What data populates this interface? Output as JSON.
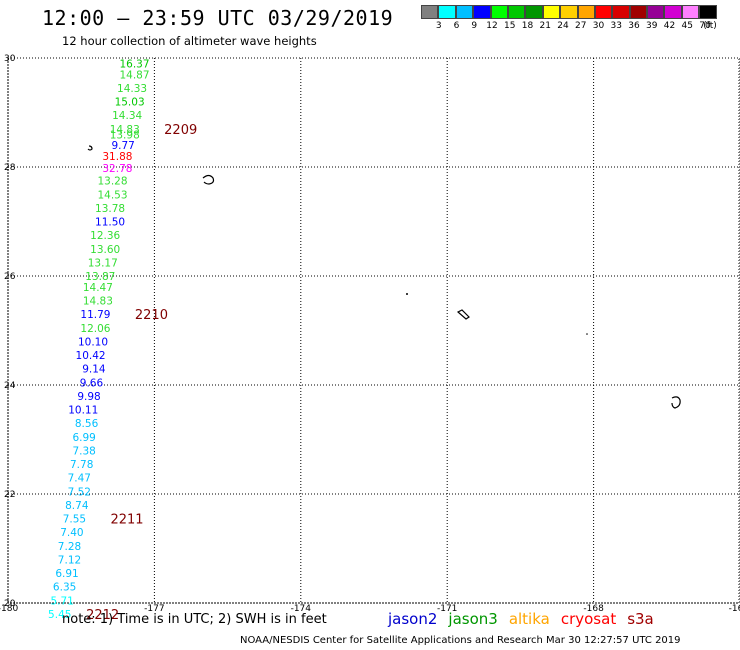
{
  "header": {
    "title": "12:00 – 23:59 UTC 03/29/2019",
    "subtitle": "12 hour collection of altimeter wave heights"
  },
  "legend": {
    "colors": [
      "#808080",
      "#00ffff",
      "#00bfff",
      "#0000ff",
      "#00ff00",
      "#00c800",
      "#009600",
      "#ffff00",
      "#ffd000",
      "#ffa500",
      "#ff0000",
      "#d70000",
      "#a00000",
      "#960096",
      "#d200d2",
      "#ff80ff",
      "#000000"
    ],
    "labels": [
      "3",
      "6",
      "9",
      "12",
      "15",
      "18",
      "21",
      "24",
      "27",
      "30",
      "33",
      "36",
      "39",
      "42",
      "45",
      "70",
      "(ft)"
    ]
  },
  "map": {
    "lon_labels": [
      "-180",
      "-177",
      "-174",
      "-171",
      "-168",
      "-16"
    ],
    "lat_labels": [
      "30",
      "28",
      "26",
      "24",
      "22",
      "20"
    ],
    "lon_range": [
      -180,
      -165
    ],
    "lat_range": [
      20,
      30
    ],
    "track": [
      {
        "v": "16.37",
        "c": "#00c800",
        "lon": -177.1,
        "lat": 29.9
      },
      {
        "v": "14.87",
        "c": "#33dd33",
        "lon": -177.1,
        "lat": 29.7
      },
      {
        "v": "14.33",
        "c": "#33dd33",
        "lon": -177.15,
        "lat": 29.45
      },
      {
        "v": "15.03",
        "c": "#00c800",
        "lon": -177.2,
        "lat": 29.2
      },
      {
        "v": "14.34",
        "c": "#33dd33",
        "lon": -177.25,
        "lat": 28.95
      },
      {
        "v": "14.83",
        "c": "#33dd33",
        "lon": -177.3,
        "lat": 28.7
      },
      {
        "v": "13.98",
        "c": "#33dd33",
        "lon": -177.3,
        "lat": 28.6
      },
      {
        "v": "9.77",
        "c": "#0000ff",
        "lon": -177.4,
        "lat": 28.4
      },
      {
        "v": "31.88",
        "c": "#ff0000",
        "lon": -177.45,
        "lat": 28.2
      },
      {
        "v": "32.78",
        "c": "#ff00ff",
        "lon": -177.45,
        "lat": 27.98
      },
      {
        "v": "13.28",
        "c": "#33dd33",
        "lon": -177.55,
        "lat": 27.75
      },
      {
        "v": "14.53",
        "c": "#33dd33",
        "lon": -177.55,
        "lat": 27.5
      },
      {
        "v": "13.78",
        "c": "#33dd33",
        "lon": -177.6,
        "lat": 27.25
      },
      {
        "v": "11.50",
        "c": "#0000ff",
        "lon": -177.6,
        "lat": 27.0
      },
      {
        "v": "12.36",
        "c": "#33dd33",
        "lon": -177.7,
        "lat": 26.75
      },
      {
        "v": "13.60",
        "c": "#33dd33",
        "lon": -177.7,
        "lat": 26.5
      },
      {
        "v": "13.17",
        "c": "#33dd33",
        "lon": -177.75,
        "lat": 26.25
      },
      {
        "v": "13.87",
        "c": "#33dd33",
        "lon": -177.8,
        "lat": 26.0
      },
      {
        "v": "14.47",
        "c": "#33dd33",
        "lon": -177.85,
        "lat": 25.8
      },
      {
        "v": "14.83",
        "c": "#33dd33",
        "lon": -177.85,
        "lat": 25.55
      },
      {
        "v": "11.79",
        "c": "#0000ff",
        "lon": -177.9,
        "lat": 25.3
      },
      {
        "v": "12.06",
        "c": "#33dd33",
        "lon": -177.9,
        "lat": 25.05
      },
      {
        "v": "10.10",
        "c": "#0000ff",
        "lon": -177.95,
        "lat": 24.8
      },
      {
        "v": "10.42",
        "c": "#0000ff",
        "lon": -178.0,
        "lat": 24.55
      },
      {
        "v": "9.14",
        "c": "#0000ff",
        "lon": -178.0,
        "lat": 24.3
      },
      {
        "v": "9.66",
        "c": "#0000ff",
        "lon": -178.05,
        "lat": 24.05
      },
      {
        "v": "9.98",
        "c": "#0000ff",
        "lon": -178.1,
        "lat": 23.8
      },
      {
        "v": "10.11",
        "c": "#0000ff",
        "lon": -178.15,
        "lat": 23.55
      },
      {
        "v": "8.56",
        "c": "#00bfff",
        "lon": -178.15,
        "lat": 23.3
      },
      {
        "v": "6.99",
        "c": "#00bfff",
        "lon": -178.2,
        "lat": 23.05
      },
      {
        "v": "7.38",
        "c": "#00bfff",
        "lon": -178.2,
        "lat": 22.8
      },
      {
        "v": "7.78",
        "c": "#00bfff",
        "lon": -178.25,
        "lat": 22.55
      },
      {
        "v": "7.47",
        "c": "#00bfff",
        "lon": -178.3,
        "lat": 22.3
      },
      {
        "v": "7.52",
        "c": "#00bfff",
        "lon": -178.3,
        "lat": 22.05
      },
      {
        "v": "8.74",
        "c": "#00bfff",
        "lon": -178.35,
        "lat": 21.8
      },
      {
        "v": "7.55",
        "c": "#00bfff",
        "lon": -178.4,
        "lat": 21.55
      },
      {
        "v": "7.40",
        "c": "#00bfff",
        "lon": -178.45,
        "lat": 21.3
      },
      {
        "v": "7.28",
        "c": "#00bfff",
        "lon": -178.5,
        "lat": 21.05
      },
      {
        "v": "7.12",
        "c": "#00bfff",
        "lon": -178.5,
        "lat": 20.8
      },
      {
        "v": "6.91",
        "c": "#00bfff",
        "lon": -178.55,
        "lat": 20.55
      },
      {
        "v": "6.35",
        "c": "#00bfff",
        "lon": -178.6,
        "lat": 20.3
      },
      {
        "v": "5.71",
        "c": "#00ffff",
        "lon": -178.65,
        "lat": 20.05
      },
      {
        "v": "5.45",
        "c": "#00ffff",
        "lon": -178.7,
        "lat": 19.8
      }
    ],
    "times": [
      {
        "t": "2209",
        "lon": -176.8,
        "lat": 28.7
      },
      {
        "t": "2210",
        "lon": -177.4,
        "lat": 25.3
      },
      {
        "t": "2211",
        "lon": -177.9,
        "lat": 21.55
      },
      {
        "t": "2212",
        "lon": -178.4,
        "lat": 19.8
      }
    ]
  },
  "footer": {
    "note": "note: 1) Time is in UTC; 2) SWH is in feet",
    "satellites": [
      {
        "name": "jason2",
        "color": "#0000cc"
      },
      {
        "name": "jason3",
        "color": "#009600"
      },
      {
        "name": "altika",
        "color": "#ffa500"
      },
      {
        "name": "cryosat",
        "color": "#ff0000"
      },
      {
        "name": "s3a",
        "color": "#a00000"
      }
    ],
    "credit": "NOAA/NESDIS Center for Satellite Applications and Research     Mar 30 12:27:57 UTC 2019"
  }
}
